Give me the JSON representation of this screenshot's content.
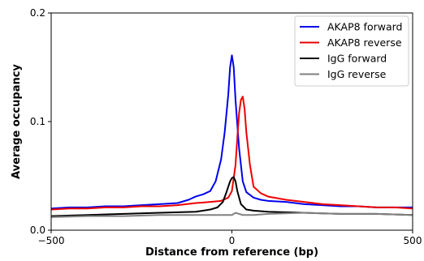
{
  "chart_data": {
    "type": "line",
    "title": "",
    "xlabel": "Distance from reference (bp)",
    "ylabel": "Average occupancy",
    "xlim": [
      -500,
      500
    ],
    "ylim": [
      0,
      0.2
    ],
    "x_ticks": [
      -500,
      0,
      500
    ],
    "x_tick_labels": [
      "−500",
      "0",
      "500"
    ],
    "y_ticks": [
      0.0,
      0.1,
      0.2
    ],
    "y_tick_labels": [
      "0.0",
      "0.1",
      "0.2"
    ],
    "grid": false,
    "legend_position": "top-right",
    "series": [
      {
        "name": "AKAP8 forward",
        "color": "#0000ee",
        "x": [
          -500,
          -450,
          -400,
          -350,
          -300,
          -250,
          -200,
          -150,
          -120,
          -100,
          -80,
          -60,
          -45,
          -30,
          -20,
          -10,
          -5,
          0,
          5,
          10,
          20,
          30,
          40,
          60,
          80,
          100,
          150,
          200,
          250,
          300,
          350,
          400,
          450,
          500
        ],
        "y": [
          0.02,
          0.021,
          0.021,
          0.022,
          0.022,
          0.023,
          0.024,
          0.025,
          0.028,
          0.031,
          0.033,
          0.036,
          0.045,
          0.065,
          0.09,
          0.125,
          0.15,
          0.161,
          0.15,
          0.12,
          0.075,
          0.045,
          0.035,
          0.03,
          0.028,
          0.027,
          0.026,
          0.024,
          0.023,
          0.022,
          0.022,
          0.021,
          0.021,
          0.021
        ]
      },
      {
        "name": "AKAP8 reverse",
        "color": "#ee0000",
        "x": [
          -500,
          -450,
          -400,
          -350,
          -300,
          -250,
          -200,
          -150,
          -100,
          -60,
          -30,
          -10,
          0,
          10,
          15,
          20,
          25,
          30,
          35,
          40,
          50,
          60,
          80,
          100,
          150,
          200,
          250,
          300,
          350,
          400,
          450,
          500
        ],
        "y": [
          0.019,
          0.02,
          0.02,
          0.021,
          0.021,
          0.022,
          0.022,
          0.023,
          0.025,
          0.026,
          0.027,
          0.03,
          0.036,
          0.06,
          0.085,
          0.108,
          0.12,
          0.123,
          0.112,
          0.09,
          0.06,
          0.04,
          0.034,
          0.031,
          0.028,
          0.026,
          0.024,
          0.023,
          0.022,
          0.021,
          0.021,
          0.02
        ]
      },
      {
        "name": "IgG forward",
        "color": "#000000",
        "x": [
          -500,
          -400,
          -300,
          -200,
          -100,
          -60,
          -40,
          -25,
          -15,
          -5,
          0,
          5,
          10,
          15,
          25,
          40,
          60,
          100,
          200,
          300,
          400,
          500
        ],
        "y": [
          0.013,
          0.014,
          0.015,
          0.016,
          0.017,
          0.019,
          0.021,
          0.026,
          0.035,
          0.045,
          0.048,
          0.049,
          0.045,
          0.036,
          0.024,
          0.019,
          0.018,
          0.017,
          0.016,
          0.015,
          0.015,
          0.014
        ]
      },
      {
        "name": "IgG reverse",
        "color": "#808080",
        "x": [
          -500,
          -400,
          -300,
          -200,
          -100,
          -20,
          0,
          10,
          20,
          30,
          60,
          100,
          200,
          300,
          400,
          500
        ],
        "y": [
          0.012,
          0.013,
          0.013,
          0.014,
          0.014,
          0.014,
          0.014,
          0.016,
          0.015,
          0.014,
          0.014,
          0.015,
          0.016,
          0.015,
          0.015,
          0.014
        ]
      }
    ]
  }
}
